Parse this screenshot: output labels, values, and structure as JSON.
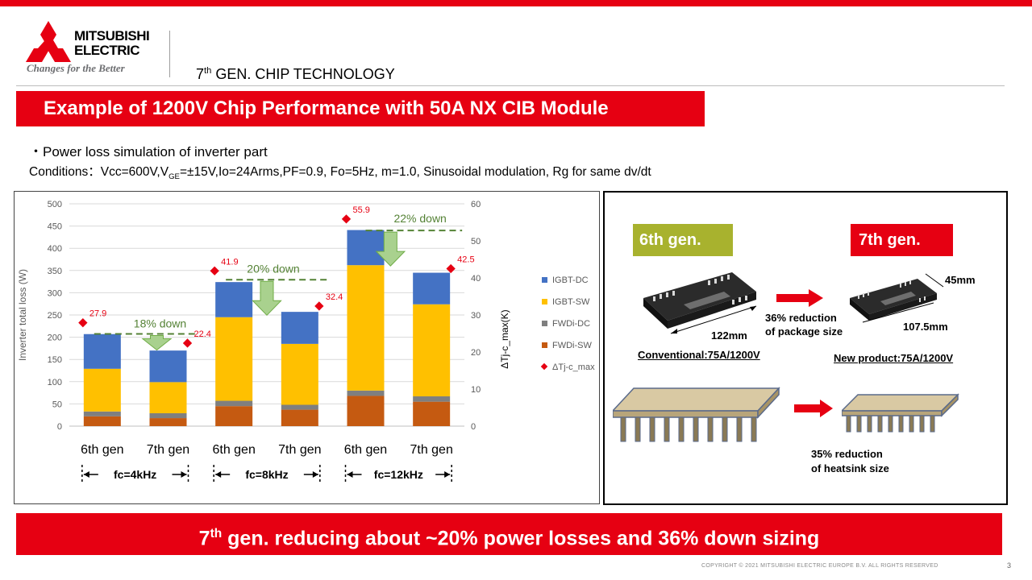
{
  "header": {
    "logo_line1": "MITSUBISHI",
    "logo_line2": "ELECTRIC",
    "tagline": "Changes for the Better",
    "section_prefix": "7",
    "section_sup": "th",
    "section_suffix": " GEN. CHIP TECHNOLOGY"
  },
  "title": "Example of 1200V Chip Performance with 50A NX  CIB Module",
  "bullet": "・Power loss simulation of inverter part",
  "conditions": {
    "part1": "Conditions：Vcc=600V,V",
    "sub": "GE",
    "part2": "=±15V,Io=24Arms,PF=0.9, Fo=5Hz, m=1.0, Sinusoidal modulation, Rg for same dv/dt"
  },
  "chart_data": {
    "type": "bar",
    "stacked": true,
    "categories": [
      "6th gen",
      "7th gen",
      "6th gen",
      "7th gen",
      "6th gen",
      "7th gen"
    ],
    "groups": [
      "fc=4kHz",
      "fc=8kHz",
      "fc=12kHz"
    ],
    "ylabel": "Inverter total loss (W)",
    "y2label": "ΔTj-c_max(K)",
    "ylim": [
      0,
      500
    ],
    "yticks": [
      "0",
      "50",
      "100",
      "150",
      "200",
      "250",
      "300",
      "350",
      "400",
      "450",
      "500"
    ],
    "y2lim": [
      0,
      60
    ],
    "y2ticks": [
      "0",
      "10",
      "20",
      "30",
      "40",
      "50",
      "60"
    ],
    "grid": true,
    "legend_position": "right",
    "series": [
      {
        "name": "FWDi-SW",
        "color": "#c55a11",
        "values": [
          22,
          18,
          45,
          37,
          68,
          55
        ]
      },
      {
        "name": "FWDi-DC",
        "color": "#7f7f7f",
        "values": [
          11,
          11,
          12,
          11,
          12,
          12
        ]
      },
      {
        "name": "IGBT-SW",
        "color": "#ffc000",
        "values": [
          96,
          70,
          188,
          137,
          282,
          207
        ]
      },
      {
        "name": "IGBT-DC",
        "color": "#4472c4",
        "values": [
          78,
          71,
          79,
          72,
          79,
          71
        ]
      }
    ],
    "marker_series": {
      "name": "ΔTj-c_max",
      "color": "#e60012",
      "values": [
        27.9,
        22.4,
        41.9,
        32.4,
        55.9,
        42.5
      ],
      "labels": [
        "27.9",
        "22.4",
        "41.9",
        "32.4",
        "55.9",
        "42.5"
      ]
    },
    "annotations": [
      "18% down",
      "20% down",
      "22% down"
    ],
    "annotation_color": "#70ad47"
  },
  "comparison": {
    "gen6_label": "6th gen.",
    "gen7_label": "7th gen.",
    "dim_122": "122mm",
    "dim_107": "107.5mm",
    "dim_45": "45mm",
    "package_reduction_1": "36% reduction",
    "package_reduction_2": "of package size",
    "conventional": "Conventional:75A/1200V",
    "new_product": "New product:75A/1200V",
    "heatsink_reduction_1": "35% reduction",
    "heatsink_reduction_2": "of heatsink size"
  },
  "footer": {
    "prefix": "7",
    "sup": "th",
    "suffix": " gen. reducing about ~20% power losses  and 36% down sizing"
  },
  "copyright": "COPYRIGHT  © 2021  MITSUBISHI  ELECTRIC  EUROPE  B.V.  ALL  RIGHTS  RESERVED",
  "page_number": "3",
  "colors": {
    "brand_red": "#e60012",
    "gen6_green": "#a8b22e"
  }
}
